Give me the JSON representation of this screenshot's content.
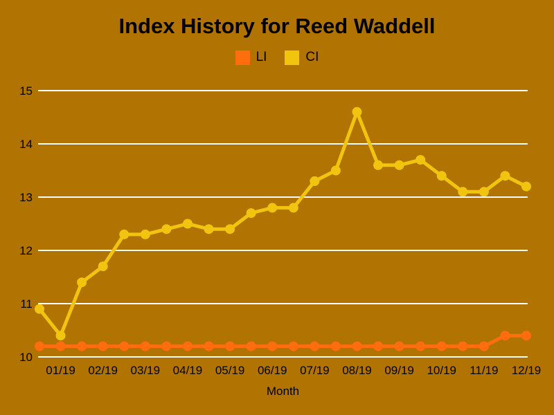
{
  "chart_data": {
    "type": "line",
    "title": "Index History for Reed Waddell",
    "xlabel": "Month",
    "ylabel": "",
    "ylim": [
      10,
      15
    ],
    "y_ticks": [
      10,
      11,
      12,
      13,
      14,
      15
    ],
    "x_tick_labels": [
      "01/19",
      "02/19",
      "03/19",
      "04/19",
      "05/19",
      "06/19",
      "07/19",
      "08/19",
      "09/19",
      "10/19",
      "11/19",
      "12/19"
    ],
    "x_tick_indices": [
      1,
      3,
      5,
      7,
      9,
      11,
      13,
      15,
      17,
      19,
      21,
      23
    ],
    "points_per_month": 2,
    "grid": "horizontal-white",
    "legend_position": "top-center",
    "series": [
      {
        "name": "LI",
        "color": "#FF6D0E",
        "values": [
          10.2,
          10.2,
          10.2,
          10.2,
          10.2,
          10.2,
          10.2,
          10.2,
          10.2,
          10.2,
          10.2,
          10.2,
          10.2,
          10.2,
          10.2,
          10.2,
          10.2,
          10.2,
          10.2,
          10.2,
          10.2,
          10.2,
          10.4,
          10.4
        ]
      },
      {
        "name": "CI",
        "color": "#F1C40F",
        "values": [
          10.9,
          10.4,
          11.4,
          11.7,
          12.3,
          12.3,
          12.4,
          12.5,
          12.4,
          12.4,
          12.7,
          12.8,
          12.8,
          13.3,
          13.5,
          14.6,
          13.6,
          13.6,
          13.7,
          13.4,
          13.1,
          13.1,
          13.4,
          13.2
        ]
      }
    ]
  },
  "colors": {
    "background": "#B17302",
    "gridline": "#FFFFFF",
    "text": "#000000"
  }
}
